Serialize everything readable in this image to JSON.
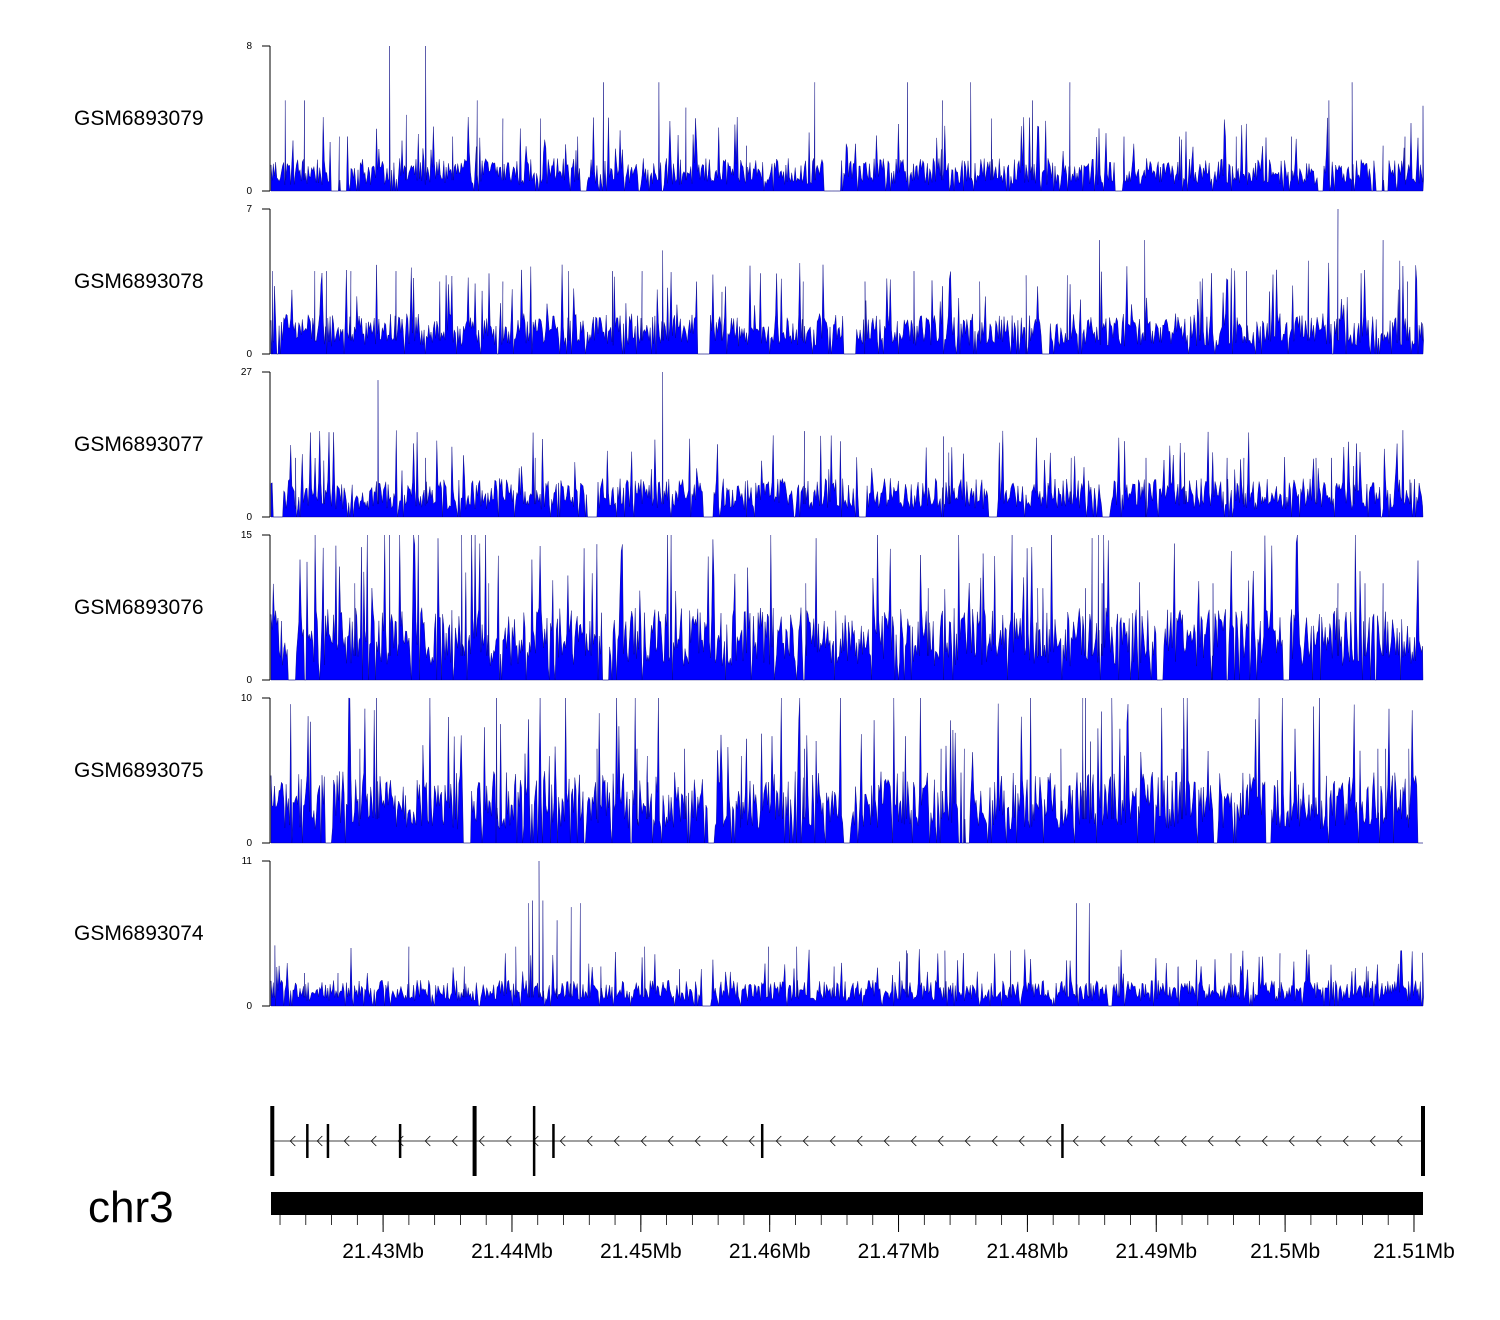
{
  "chart_data": {
    "type": "area",
    "color": "#0000FF",
    "chromosome": "chr3",
    "xlim_mb": [
      21.4213,
      21.5107
    ],
    "x_ticks_mb": [
      21.43,
      21.44,
      21.45,
      21.46,
      21.47,
      21.48,
      21.49,
      21.5,
      21.51
    ],
    "x_tick_labels": [
      "21.43Mb",
      "21.44Mb",
      "21.45Mb",
      "21.46Mb",
      "21.47Mb",
      "21.48Mb",
      "21.49Mb",
      "21.5Mb",
      "21.51Mb"
    ],
    "series": [
      {
        "name": "GSM6893079",
        "ylim": [
          0,
          8
        ],
        "baseline": 1.2,
        "peaks": [
          [
            21.4224,
            5
          ],
          [
            21.4239,
            5
          ],
          [
            21.4266,
            3
          ],
          [
            21.4305,
            8
          ],
          [
            21.4318,
            4.2
          ],
          [
            21.4333,
            8
          ],
          [
            21.4354,
            3
          ],
          [
            21.4373,
            5
          ],
          [
            21.4393,
            4
          ],
          [
            21.4422,
            4
          ],
          [
            21.4451,
            3
          ],
          [
            21.4471,
            6
          ],
          [
            21.4514,
            6
          ],
          [
            21.4535,
            4.6
          ],
          [
            21.4582,
            2.5
          ],
          [
            21.4635,
            6
          ],
          [
            21.4707,
            6
          ],
          [
            21.4734,
            5
          ],
          [
            21.4756,
            6
          ],
          [
            21.4772,
            4
          ],
          [
            21.4804,
            5
          ],
          [
            21.4833,
            6
          ],
          [
            21.4875,
            3
          ],
          [
            21.4918,
            3
          ],
          [
            21.4962,
            3
          ],
          [
            21.5005,
            3
          ],
          [
            21.5034,
            5
          ],
          [
            21.5052,
            6
          ],
          [
            21.5076,
            2.5
          ],
          [
            21.5093,
            3
          ],
          [
            21.5107,
            4.7
          ]
        ],
        "gaps": [
          [
            21.4259,
            21.4272
          ],
          [
            21.4453,
            21.4458
          ],
          [
            21.4642,
            21.4655
          ],
          [
            21.4868,
            21.4874
          ],
          [
            21.5025,
            21.503
          ],
          [
            21.507,
            21.508
          ]
        ]
      },
      {
        "name": "GSM6893078",
        "ylim": [
          0,
          7
        ],
        "baseline": 1.3,
        "peaks": [
          [
            21.4214,
            4
          ],
          [
            21.4247,
            4
          ],
          [
            21.4256,
            4
          ],
          [
            21.4275,
            4
          ],
          [
            21.431,
            4
          ],
          [
            21.4344,
            3.5
          ],
          [
            21.4393,
            3.5
          ],
          [
            21.4444,
            4
          ],
          [
            21.4478,
            4
          ],
          [
            21.4501,
            4
          ],
          [
            21.4517,
            5
          ],
          [
            21.4563,
            3
          ],
          [
            21.4626,
            3.5
          ],
          [
            21.4674,
            3.5
          ],
          [
            21.4712,
            4
          ],
          [
            21.4763,
            3.5
          ],
          [
            21.4799,
            3.8
          ],
          [
            21.4831,
            3.8
          ],
          [
            21.4856,
            5.5
          ],
          [
            21.4891,
            5.5
          ],
          [
            21.4934,
            3.5
          ],
          [
            21.497,
            4
          ],
          [
            21.5018,
            4.5
          ],
          [
            21.5041,
            7
          ],
          [
            21.5076,
            5.5
          ],
          [
            21.5089,
            4.5
          ],
          [
            21.5095,
            3.5
          ],
          [
            21.5107,
            1.3
          ]
        ],
        "gaps": [
          [
            21.4544,
            21.4553
          ],
          [
            21.4657,
            21.4667
          ],
          [
            21.4811,
            21.4817
          ]
        ]
      },
      {
        "name": "GSM6893077",
        "ylim": [
          0,
          27
        ],
        "baseline": 4.8,
        "peaks": [
          [
            21.4232,
            11
          ],
          [
            21.4254,
            10.5
          ],
          [
            21.4296,
            25.5
          ],
          [
            21.4333,
            11
          ],
          [
            21.4418,
            11
          ],
          [
            21.4517,
            27
          ],
          [
            21.4627,
            16
          ],
          [
            21.4735,
            15
          ],
          [
            21.4739,
            12
          ],
          [
            21.4834,
            11
          ],
          [
            21.4892,
            11
          ],
          [
            21.4922,
            12
          ],
          [
            21.4955,
            11
          ],
          [
            21.4968,
            11
          ],
          [
            21.5024,
            11
          ],
          [
            21.5036,
            11
          ],
          [
            21.5053,
            9.5
          ],
          [
            21.5097,
            6
          ]
        ],
        "gaps": [
          [
            21.4214,
            21.4222
          ],
          [
            21.4458,
            21.4466
          ],
          [
            21.4548,
            21.4556
          ],
          [
            21.4669,
            21.4675
          ],
          [
            21.477,
            21.4777
          ],
          [
            21.4858,
            21.4864
          ],
          [
            21.5107,
            21.511
          ]
        ]
      },
      {
        "name": "GSM6893076",
        "ylim": [
          0,
          15
        ],
        "baseline": 5,
        "peaks": [
          [
            21.4278,
            10
          ],
          [
            21.4305,
            15
          ],
          [
            21.4361,
            15
          ],
          [
            21.4382,
            10
          ],
          [
            21.4628,
            10
          ],
          [
            21.4723,
            9.5
          ],
          [
            21.4808,
            9.5
          ],
          [
            21.4812,
            9.5
          ],
          [
            21.4845,
            9.5
          ],
          [
            21.485,
            10
          ],
          [
            21.4855,
            15
          ],
          [
            21.4858,
            10
          ],
          [
            21.4944,
            10
          ],
          [
            21.5041,
            10
          ],
          [
            21.5062,
            10
          ],
          [
            21.5076,
            10
          ]
        ],
        "gaps": [
          [
            21.4226,
            21.4232
          ],
          [
            21.447,
            21.4475
          ],
          [
            21.49,
            21.4906
          ],
          [
            21.4998,
            21.5004
          ],
          [
            21.5107,
            21.511
          ]
        ]
      },
      {
        "name": "GSM6893075",
        "ylim": [
          0,
          10
        ],
        "baseline": 3.3,
        "peaks": [
          [
            21.4282,
            6.5
          ],
          [
            21.4295,
            6.5
          ],
          [
            21.4388,
            10
          ],
          [
            21.4466,
            6.5
          ],
          [
            21.4497,
            6.5
          ],
          [
            21.4505,
            6
          ],
          [
            21.4534,
            6.5
          ],
          [
            21.4578,
            6
          ],
          [
            21.4627,
            6.5
          ],
          [
            21.4733,
            6.5
          ],
          [
            21.4751,
            6.5
          ],
          [
            21.4826,
            6.5
          ],
          [
            21.4843,
            10
          ],
          [
            21.4845,
            10
          ],
          [
            21.4849,
            7
          ],
          [
            21.4866,
            7
          ],
          [
            21.492,
            6.5
          ],
          [
            21.5072,
            6.5
          ],
          [
            21.5078,
            6.5
          ],
          [
            21.5096,
            6.5
          ]
        ],
        "gaps": [
          [
            21.4255,
            21.426
          ],
          [
            21.4363,
            21.4368
          ],
          [
            21.4552,
            21.4557
          ],
          [
            21.4657,
            21.4663
          ],
          [
            21.4749,
            21.4755
          ],
          [
            21.4944,
            21.4948
          ],
          [
            21.4985,
            21.4989
          ],
          [
            21.5103,
            21.511
          ]
        ]
      },
      {
        "name": "GSM6893074",
        "ylim": [
          0,
          11
        ],
        "baseline": 1.3,
        "peaks": [
          [
            21.4216,
            4.6
          ],
          [
            21.4239,
            2.5
          ],
          [
            21.4265,
            2.5
          ],
          [
            21.432,
            4.5
          ],
          [
            21.4363,
            3
          ],
          [
            21.4403,
            4.5
          ],
          [
            21.4413,
            7.8
          ],
          [
            21.4416,
            8
          ],
          [
            21.4421,
            11
          ],
          [
            21.4424,
            8
          ],
          [
            21.4435,
            6.5
          ],
          [
            21.4446,
            7.5
          ],
          [
            21.4453,
            7.8
          ],
          [
            21.4469,
            3
          ],
          [
            21.4503,
            4.5
          ],
          [
            21.453,
            2.8
          ],
          [
            21.4599,
            4.5
          ],
          [
            21.4621,
            4.5
          ],
          [
            21.465,
            3
          ],
          [
            21.4707,
            4
          ],
          [
            21.4736,
            4.2
          ],
          [
            21.4787,
            4.2
          ],
          [
            21.4838,
            7.8
          ],
          [
            21.4848,
            7.8
          ],
          [
            21.4871,
            3
          ],
          [
            21.4917,
            3
          ],
          [
            21.4958,
            4
          ],
          [
            21.4996,
            4
          ],
          [
            21.5063,
            3
          ],
          [
            21.5107,
            2.8
          ]
        ],
        "gaps": [
          [
            21.4547,
            21.4555
          ],
          [
            21.4862,
            21.4866
          ]
        ]
      }
    ],
    "gene_track": {
      "strand": "-",
      "exons_mb": [
        21.4214,
        21.4241,
        21.4257,
        21.4313,
        21.4371,
        21.4417,
        21.4432,
        21.4594,
        21.4827,
        21.5107
      ]
    }
  }
}
